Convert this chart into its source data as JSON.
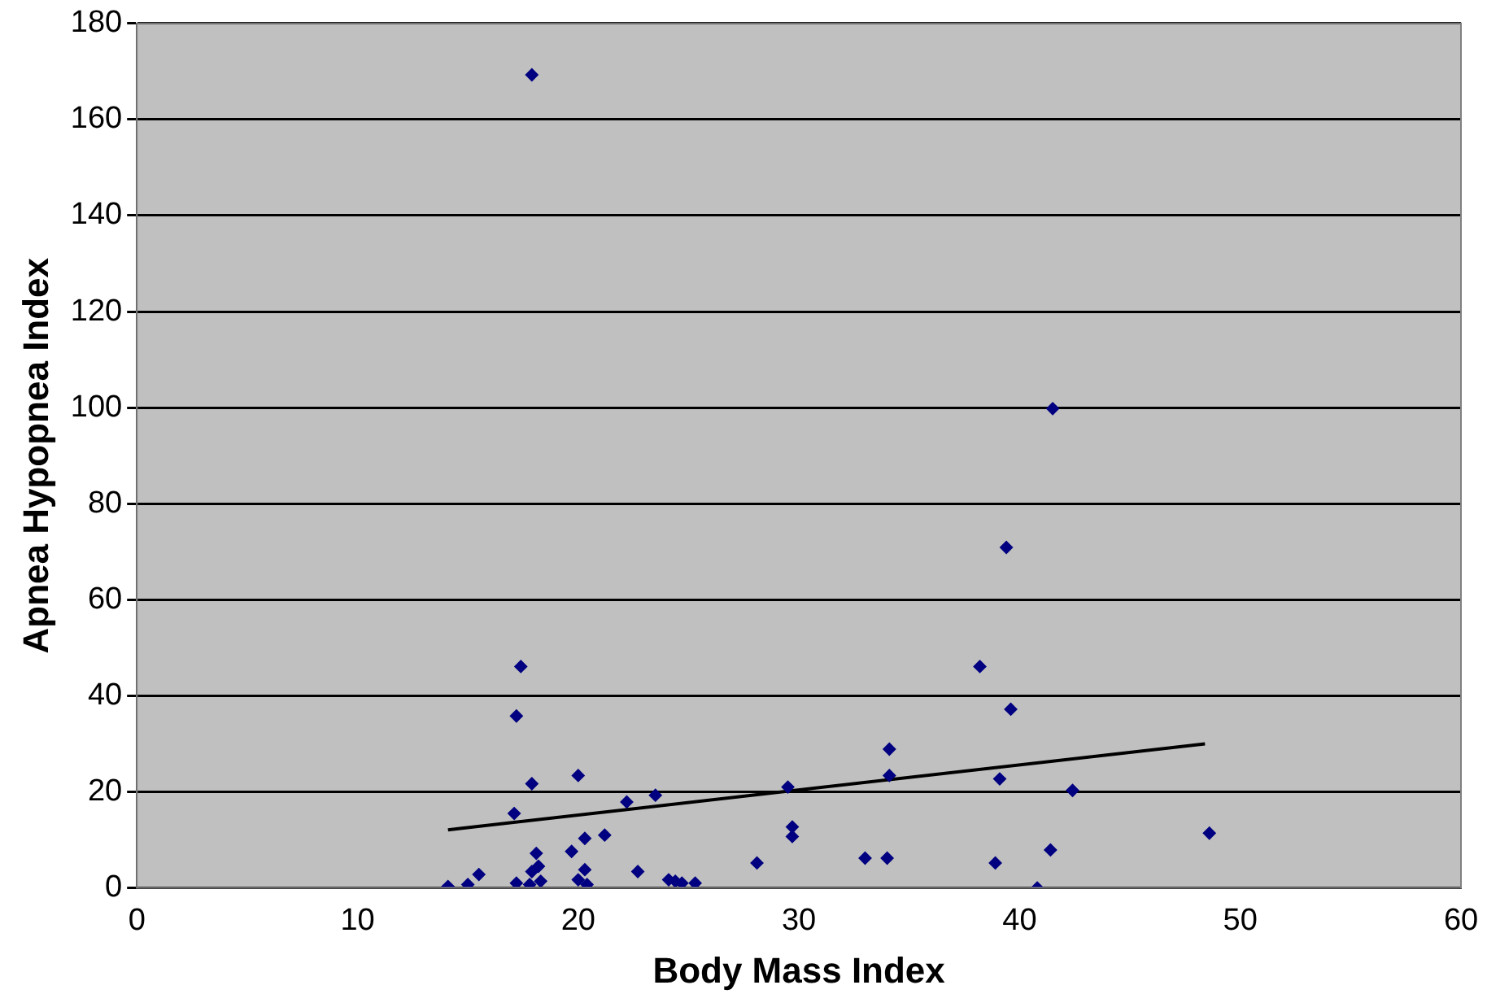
{
  "chart_data": {
    "type": "scatter",
    "xlabel": "Body Mass Index",
    "ylabel": "Apnea Hypopnea Index",
    "xlim": [
      0,
      60
    ],
    "xticks": [
      0,
      10,
      20,
      30,
      40,
      50,
      60
    ],
    "ylim": [
      0,
      180
    ],
    "yticks": [
      0,
      20,
      40,
      60,
      80,
      100,
      120,
      140,
      160,
      180
    ],
    "grid": "y",
    "legend": false,
    "series": [
      {
        "type": "scatter",
        "marker": "diamond",
        "color": "#000080",
        "x": [
          17.9,
          41.5,
          39.4,
          17.4,
          38.2,
          39.6,
          17.2,
          34.1,
          17.9,
          20.0,
          34.1,
          39.1,
          29.5,
          42.4,
          23.5,
          22.2,
          17.1,
          29.7,
          48.6,
          21.2,
          20.3,
          29.7,
          41.4,
          19.7,
          18.1,
          33.0,
          34.0,
          28.1,
          38.9,
          18.2,
          20.3,
          17.9,
          22.7,
          15.5,
          24.1,
          20.0,
          18.3,
          24.4,
          17.2,
          24.7,
          25.3,
          17.8,
          15.0,
          20.4,
          14.1,
          40.8
        ],
        "values": [
          169.3,
          99.8,
          70.9,
          46.1,
          46.1,
          37.2,
          35.8,
          28.9,
          21.7,
          23.4,
          23.4,
          22.7,
          21,
          20.3,
          19.3,
          17.9,
          15.5,
          12.7,
          11.4,
          11,
          10.3,
          10.7,
          7.9,
          7.6,
          7.2,
          6.2,
          6.2,
          5.2,
          5.2,
          4.5,
          3.8,
          3.4,
          3.4,
          2.8,
          1.7,
          1.7,
          1.4,
          1.4,
          1,
          1,
          1,
          0.7,
          0.7,
          0.7,
          0.3,
          0
        ]
      },
      {
        "type": "line",
        "marker": "none",
        "color": "#000000",
        "x": [
          14.1,
          48.4
        ],
        "values": [
          12.1,
          30
        ]
      }
    ]
  }
}
